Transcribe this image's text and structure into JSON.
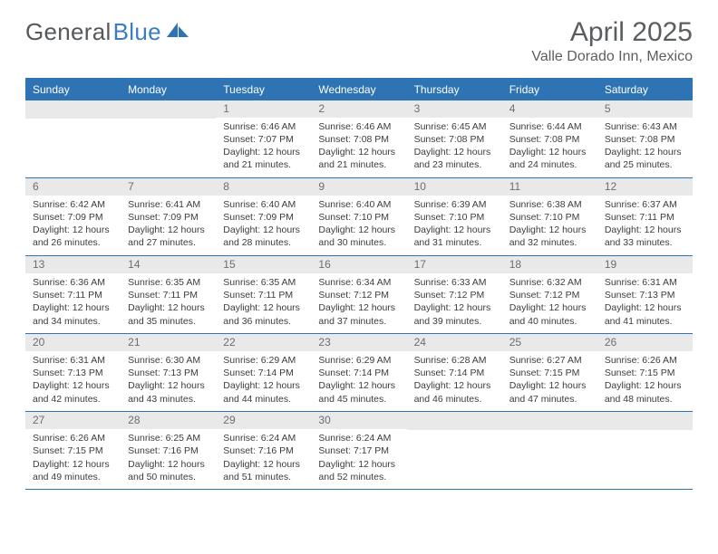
{
  "brand": {
    "text_gray": "General",
    "text_blue": "Blue",
    "gray_color": "#55595c",
    "blue_color": "#3b7dbf"
  },
  "header": {
    "title": "April 2025",
    "location": "Valle Dorado Inn, Mexico"
  },
  "colors": {
    "header_bar": "#2e74b5",
    "day_num_bg": "#e9e9e9",
    "text": "#3a3c3e",
    "title_text": "#5a5e61"
  },
  "weekdays": [
    "Sunday",
    "Monday",
    "Tuesday",
    "Wednesday",
    "Thursday",
    "Friday",
    "Saturday"
  ],
  "weeks": [
    [
      {
        "empty": true
      },
      {
        "empty": true
      },
      {
        "num": "1",
        "sunrise": "Sunrise: 6:46 AM",
        "sunset": "Sunset: 7:07 PM",
        "daylight1": "Daylight: 12 hours",
        "daylight2": "and 21 minutes."
      },
      {
        "num": "2",
        "sunrise": "Sunrise: 6:46 AM",
        "sunset": "Sunset: 7:08 PM",
        "daylight1": "Daylight: 12 hours",
        "daylight2": "and 21 minutes."
      },
      {
        "num": "3",
        "sunrise": "Sunrise: 6:45 AM",
        "sunset": "Sunset: 7:08 PM",
        "daylight1": "Daylight: 12 hours",
        "daylight2": "and 23 minutes."
      },
      {
        "num": "4",
        "sunrise": "Sunrise: 6:44 AM",
        "sunset": "Sunset: 7:08 PM",
        "daylight1": "Daylight: 12 hours",
        "daylight2": "and 24 minutes."
      },
      {
        "num": "5",
        "sunrise": "Sunrise: 6:43 AM",
        "sunset": "Sunset: 7:08 PM",
        "daylight1": "Daylight: 12 hours",
        "daylight2": "and 25 minutes."
      }
    ],
    [
      {
        "num": "6",
        "sunrise": "Sunrise: 6:42 AM",
        "sunset": "Sunset: 7:09 PM",
        "daylight1": "Daylight: 12 hours",
        "daylight2": "and 26 minutes."
      },
      {
        "num": "7",
        "sunrise": "Sunrise: 6:41 AM",
        "sunset": "Sunset: 7:09 PM",
        "daylight1": "Daylight: 12 hours",
        "daylight2": "and 27 minutes."
      },
      {
        "num": "8",
        "sunrise": "Sunrise: 6:40 AM",
        "sunset": "Sunset: 7:09 PM",
        "daylight1": "Daylight: 12 hours",
        "daylight2": "and 28 minutes."
      },
      {
        "num": "9",
        "sunrise": "Sunrise: 6:40 AM",
        "sunset": "Sunset: 7:10 PM",
        "daylight1": "Daylight: 12 hours",
        "daylight2": "and 30 minutes."
      },
      {
        "num": "10",
        "sunrise": "Sunrise: 6:39 AM",
        "sunset": "Sunset: 7:10 PM",
        "daylight1": "Daylight: 12 hours",
        "daylight2": "and 31 minutes."
      },
      {
        "num": "11",
        "sunrise": "Sunrise: 6:38 AM",
        "sunset": "Sunset: 7:10 PM",
        "daylight1": "Daylight: 12 hours",
        "daylight2": "and 32 minutes."
      },
      {
        "num": "12",
        "sunrise": "Sunrise: 6:37 AM",
        "sunset": "Sunset: 7:11 PM",
        "daylight1": "Daylight: 12 hours",
        "daylight2": "and 33 minutes."
      }
    ],
    [
      {
        "num": "13",
        "sunrise": "Sunrise: 6:36 AM",
        "sunset": "Sunset: 7:11 PM",
        "daylight1": "Daylight: 12 hours",
        "daylight2": "and 34 minutes."
      },
      {
        "num": "14",
        "sunrise": "Sunrise: 6:35 AM",
        "sunset": "Sunset: 7:11 PM",
        "daylight1": "Daylight: 12 hours",
        "daylight2": "and 35 minutes."
      },
      {
        "num": "15",
        "sunrise": "Sunrise: 6:35 AM",
        "sunset": "Sunset: 7:11 PM",
        "daylight1": "Daylight: 12 hours",
        "daylight2": "and 36 minutes."
      },
      {
        "num": "16",
        "sunrise": "Sunrise: 6:34 AM",
        "sunset": "Sunset: 7:12 PM",
        "daylight1": "Daylight: 12 hours",
        "daylight2": "and 37 minutes."
      },
      {
        "num": "17",
        "sunrise": "Sunrise: 6:33 AM",
        "sunset": "Sunset: 7:12 PM",
        "daylight1": "Daylight: 12 hours",
        "daylight2": "and 39 minutes."
      },
      {
        "num": "18",
        "sunrise": "Sunrise: 6:32 AM",
        "sunset": "Sunset: 7:12 PM",
        "daylight1": "Daylight: 12 hours",
        "daylight2": "and 40 minutes."
      },
      {
        "num": "19",
        "sunrise": "Sunrise: 6:31 AM",
        "sunset": "Sunset: 7:13 PM",
        "daylight1": "Daylight: 12 hours",
        "daylight2": "and 41 minutes."
      }
    ],
    [
      {
        "num": "20",
        "sunrise": "Sunrise: 6:31 AM",
        "sunset": "Sunset: 7:13 PM",
        "daylight1": "Daylight: 12 hours",
        "daylight2": "and 42 minutes."
      },
      {
        "num": "21",
        "sunrise": "Sunrise: 6:30 AM",
        "sunset": "Sunset: 7:13 PM",
        "daylight1": "Daylight: 12 hours",
        "daylight2": "and 43 minutes."
      },
      {
        "num": "22",
        "sunrise": "Sunrise: 6:29 AM",
        "sunset": "Sunset: 7:14 PM",
        "daylight1": "Daylight: 12 hours",
        "daylight2": "and 44 minutes."
      },
      {
        "num": "23",
        "sunrise": "Sunrise: 6:29 AM",
        "sunset": "Sunset: 7:14 PM",
        "daylight1": "Daylight: 12 hours",
        "daylight2": "and 45 minutes."
      },
      {
        "num": "24",
        "sunrise": "Sunrise: 6:28 AM",
        "sunset": "Sunset: 7:14 PM",
        "daylight1": "Daylight: 12 hours",
        "daylight2": "and 46 minutes."
      },
      {
        "num": "25",
        "sunrise": "Sunrise: 6:27 AM",
        "sunset": "Sunset: 7:15 PM",
        "daylight1": "Daylight: 12 hours",
        "daylight2": "and 47 minutes."
      },
      {
        "num": "26",
        "sunrise": "Sunrise: 6:26 AM",
        "sunset": "Sunset: 7:15 PM",
        "daylight1": "Daylight: 12 hours",
        "daylight2": "and 48 minutes."
      }
    ],
    [
      {
        "num": "27",
        "sunrise": "Sunrise: 6:26 AM",
        "sunset": "Sunset: 7:15 PM",
        "daylight1": "Daylight: 12 hours",
        "daylight2": "and 49 minutes."
      },
      {
        "num": "28",
        "sunrise": "Sunrise: 6:25 AM",
        "sunset": "Sunset: 7:16 PM",
        "daylight1": "Daylight: 12 hours",
        "daylight2": "and 50 minutes."
      },
      {
        "num": "29",
        "sunrise": "Sunrise: 6:24 AM",
        "sunset": "Sunset: 7:16 PM",
        "daylight1": "Daylight: 12 hours",
        "daylight2": "and 51 minutes."
      },
      {
        "num": "30",
        "sunrise": "Sunrise: 6:24 AM",
        "sunset": "Sunset: 7:17 PM",
        "daylight1": "Daylight: 12 hours",
        "daylight2": "and 52 minutes."
      },
      {
        "empty": true
      },
      {
        "empty": true
      },
      {
        "empty": true
      }
    ]
  ]
}
